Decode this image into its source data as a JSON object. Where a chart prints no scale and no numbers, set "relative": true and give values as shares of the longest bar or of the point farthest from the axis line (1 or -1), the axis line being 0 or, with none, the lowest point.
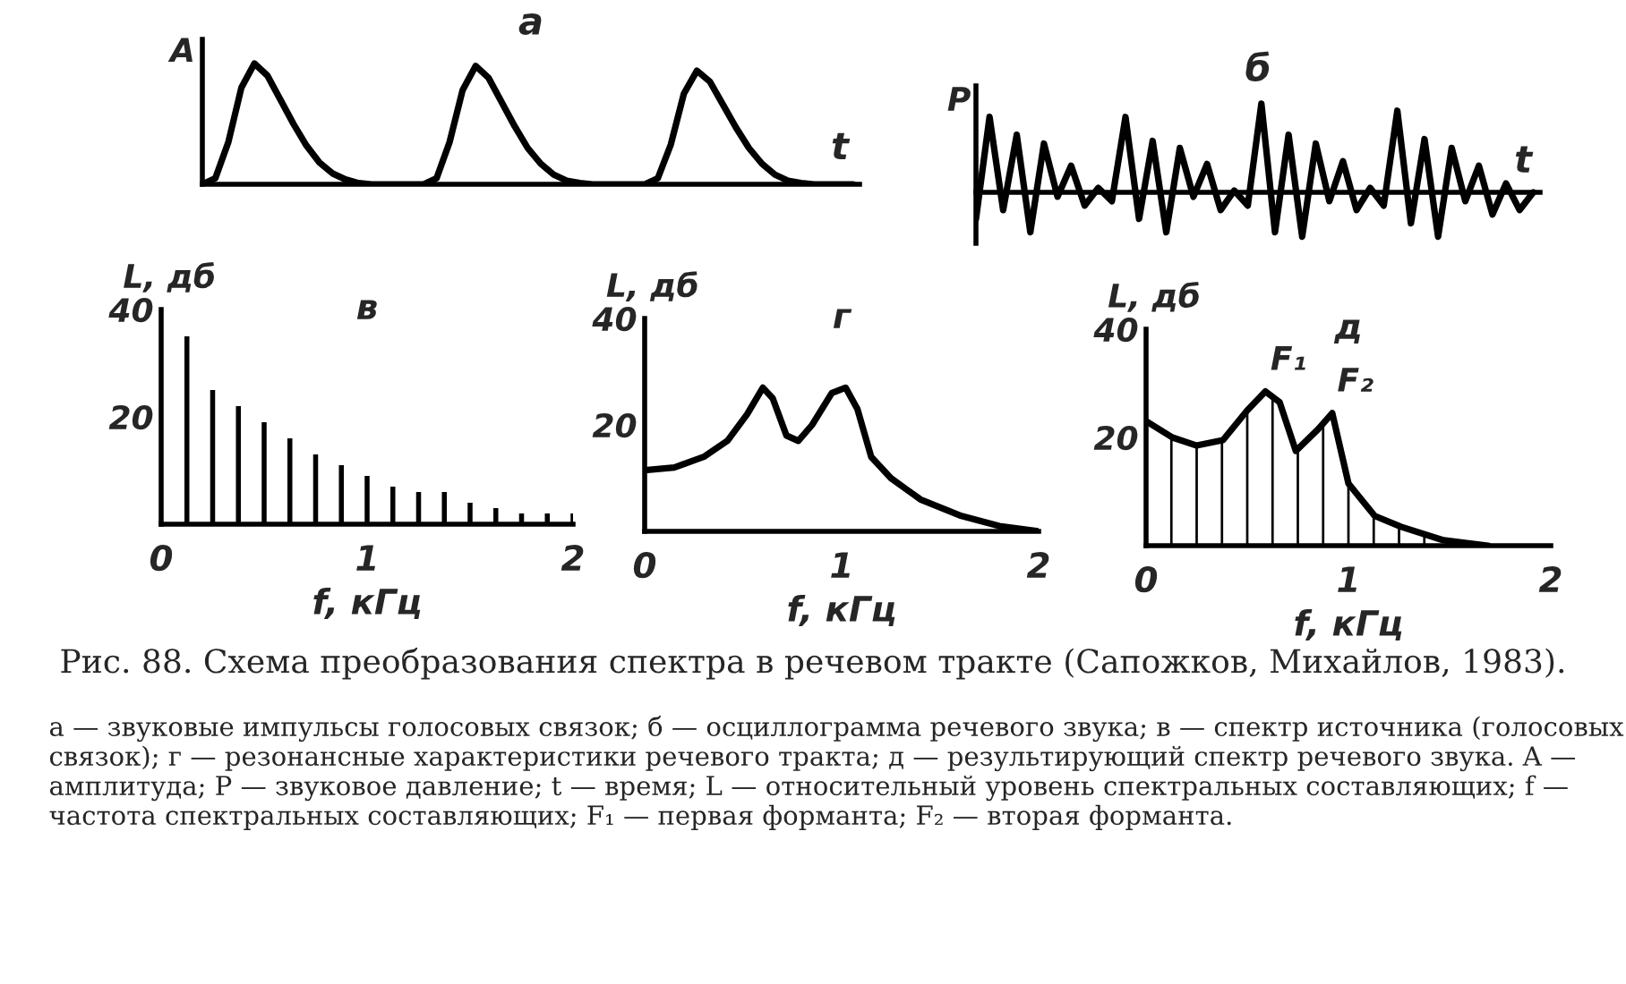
{
  "chart_data": [
    {
      "type": "line",
      "title": "а",
      "xlabel": "t",
      "ylabel": "A",
      "relative": true,
      "categories": [
        null,
        null,
        null,
        null,
        null,
        null,
        null,
        null,
        null,
        null,
        null,
        null,
        null,
        null,
        null,
        null,
        null,
        null,
        null,
        null,
        null,
        null,
        null,
        null,
        null,
        null,
        null,
        null,
        null,
        null,
        null,
        null,
        null,
        null,
        null,
        null,
        null,
        null,
        null,
        null,
        null,
        null,
        null,
        null,
        null,
        null,
        null,
        null,
        null,
        null,
        null
      ],
      "color": "#000000",
      "values": [
        0,
        0.05,
        0.35,
        0.8,
        1,
        0.9,
        0.7,
        0.5,
        0.32,
        0.18,
        0.09,
        0.04,
        0.01,
        0,
        0,
        0,
        0,
        0,
        0.05,
        0.35,
        0.78,
        0.98,
        0.88,
        0.68,
        0.48,
        0.3,
        0.17,
        0.08,
        0.03,
        0.01,
        0,
        0,
        0,
        0,
        0,
        0.05,
        0.33,
        0.75,
        0.94,
        0.85,
        0.66,
        0.47,
        0.3,
        0.17,
        0.08,
        0.03,
        0.01,
        0,
        0,
        0,
        0
      ]
    },
    {
      "type": "line",
      "title": "б",
      "xlabel": "t",
      "ylabel": "P",
      "relative": true,
      "categories": [
        null,
        null,
        null,
        null,
        null,
        null,
        null,
        null,
        null,
        null,
        null,
        null,
        null,
        null,
        null,
        null,
        null,
        null,
        null,
        null,
        null,
        null,
        null,
        null,
        null,
        null,
        null,
        null,
        null,
        null,
        null,
        null,
        null,
        null,
        null,
        null,
        null,
        null,
        null,
        null,
        null,
        null
      ],
      "color": "#000000",
      "values": [
        -0.3,
        0.85,
        -0.2,
        0.65,
        -0.45,
        0.55,
        -0.05,
        0.3,
        -0.15,
        0.05,
        -0.1,
        0.85,
        -0.3,
        0.58,
        -0.45,
        0.5,
        -0.05,
        0.32,
        -0.2,
        0.02,
        -0.15,
        1,
        -0.45,
        0.65,
        -0.5,
        0.55,
        -0.1,
        0.35,
        -0.2,
        0.05,
        -0.15,
        0.92,
        -0.35,
        0.6,
        -0.5,
        0.5,
        -0.1,
        0.3,
        -0.25,
        0.1,
        -0.2,
        0
      ]
    },
    {
      "type": "bar",
      "title": "в",
      "xlabel": "f, кГц",
      "ylabel": "L, дб",
      "color": "#000000",
      "x": [
        0.125,
        0.25,
        0.375,
        0.5,
        0.625,
        0.75,
        0.875,
        1.0,
        1.125,
        1.25,
        1.375,
        1.5,
        1.625,
        1.75,
        1.875,
        2.0
      ],
      "values": [
        35,
        25,
        22,
        19,
        16,
        13,
        11,
        9,
        7,
        6,
        6,
        4,
        3,
        2,
        2,
        2
      ],
      "xlim": [
        0,
        2
      ],
      "xticks": [
        0,
        1,
        2
      ],
      "ylim": [
        0,
        40
      ],
      "yticks": [
        20,
        40
      ]
    },
    {
      "type": "line",
      "title": "г",
      "xlabel": "f, кГц",
      "ylabel": "L, дб",
      "color": "#000000",
      "x": [
        0,
        0.15,
        0.3,
        0.42,
        0.52,
        0.6,
        0.65,
        0.72,
        0.78,
        0.85,
        0.95,
        1.02,
        1.08,
        1.15,
        1.25,
        1.4,
        1.6,
        1.8,
        2.0
      ],
      "values": [
        11.5,
        12,
        14,
        17,
        22,
        27,
        25,
        18,
        17,
        20,
        26,
        27,
        23,
        14,
        10,
        6,
        3,
        1,
        0
      ],
      "xlim": [
        0,
        2
      ],
      "xticks": [
        0,
        1,
        2
      ],
      "ylim": [
        0,
        40
      ],
      "yticks": [
        20,
        40
      ]
    },
    {
      "type": "line",
      "title": "д",
      "xlabel": "f, кГц",
      "ylabel": "L, дб",
      "series": [
        {
          "type": "line",
          "color": "#000000",
          "x": [
            0,
            0.13,
            0.25,
            0.38,
            0.5,
            0.59,
            0.66,
            0.74,
            0.85,
            0.92,
            1.0,
            1.13,
            1.26,
            1.47,
            1.69
          ],
          "values": [
            23,
            20,
            18.5,
            19.5,
            25,
            28.5,
            26.5,
            17.5,
            21.5,
            24.5,
            11.5,
            5.5,
            3.5,
            1,
            0
          ]
        },
        {
          "type": "bar",
          "color": "#000000",
          "x": [
            0.125,
            0.25,
            0.375,
            0.5,
            0.625,
            0.75,
            0.875,
            1.0,
            1.125,
            1.25,
            1.375
          ],
          "values": [
            20,
            18.5,
            19.5,
            25,
            28,
            18,
            23,
            12,
            6,
            3.5,
            2
          ]
        }
      ],
      "xlim": [
        0,
        2
      ],
      "xticks": [
        0,
        1,
        2
      ],
      "ylim": [
        0,
        40
      ],
      "yticks": [
        20,
        40
      ],
      "annotations": [
        {
          "text": "F₁",
          "x": 0.59,
          "y": 28.5
        },
        {
          "text": "F₂",
          "x": 0.92,
          "y": 24.5
        },
        "Рис. 88. Схема преобразования спектра в речевом тракте (Сапожков, Михайлов, 1983).",
        "а — звуковые импульсы голосовых связок; б — осциллограмма речевого звука; в — спектр источника (голосовых связок); г — резонансные характеристики речевого тракта; д — результирующий спектр речевого звука. A — амплитуда; P — звуковое давление; t — время; L — относительный уровень спектральных составляющих; f — частота спектральных составляющих; F₁ — первая форманта; F₂ — вторая форманта."
      ]
    }
  ]
}
